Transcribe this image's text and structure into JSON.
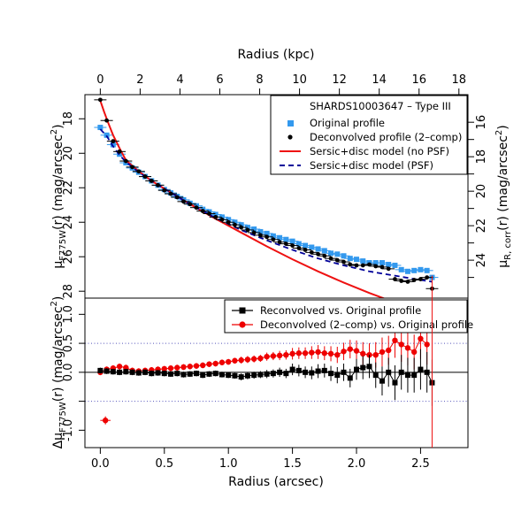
{
  "chart_data": [
    {
      "type": "scatter",
      "panel": "top",
      "x_bottom_range": [
        -0.12,
        2.87
      ],
      "top_axis": {
        "label": "Radius (kpc)",
        "ticks": [
          0,
          2,
          4,
          6,
          8,
          10,
          12,
          14,
          16,
          18
        ],
        "kpc_per_arcsec": 6.43
      },
      "ylabel_left_main": "μ",
      "ylabel_left_sub": "F775W",
      "ylabel_left_tail": "(r) (mag/arcsec",
      "ylabel_right_main": "μ",
      "ylabel_right_sub": "R, corr",
      "ylabel_right_tail": "(r) (mag/arcsec",
      "ylabel_sup": "2",
      "ylabel_close": ")",
      "ylim": [
        28.4,
        16.6
      ],
      "y_ticks": [
        18,
        20,
        22,
        24,
        26,
        28
      ],
      "y_right_ticks": [
        16,
        18,
        20,
        22,
        24
      ],
      "y_right_offset": -2.2,
      "cutoff_radius": 2.59,
      "legend_title": "SHARDS10003647  –  Type III",
      "legend": [
        "Original profile",
        "Deconvolved profile (2–comp)",
        "Sersic+disc model (no PSF)",
        "Sersic+disc model (PSF)"
      ],
      "colors": {
        "original": "#3399ee",
        "deconvolved": "#000000",
        "model_nopsf": "#ee1111",
        "model_psf": "#000099",
        "cutoff": "#ee1111"
      },
      "series": [
        {
          "name": "Original profile",
          "x": [
            0.0,
            0.05,
            0.1,
            0.15,
            0.2,
            0.25,
            0.3,
            0.35,
            0.4,
            0.45,
            0.5,
            0.55,
            0.6,
            0.65,
            0.7,
            0.75,
            0.8,
            0.85,
            0.9,
            0.95,
            1.0,
            1.05,
            1.1,
            1.15,
            1.2,
            1.25,
            1.3,
            1.35,
            1.4,
            1.45,
            1.5,
            1.55,
            1.6,
            1.65,
            1.7,
            1.75,
            1.8,
            1.85,
            1.9,
            1.95,
            2.0,
            2.05,
            2.1,
            2.15,
            2.2,
            2.25,
            2.3,
            2.35,
            2.4,
            2.45,
            2.5,
            2.55,
            2.59
          ],
          "y": [
            18.5,
            18.95,
            19.5,
            20.05,
            20.55,
            20.85,
            21.1,
            21.35,
            21.6,
            21.85,
            22.1,
            22.3,
            22.5,
            22.7,
            22.9,
            23.05,
            23.25,
            23.4,
            23.55,
            23.7,
            23.85,
            24.0,
            24.15,
            24.3,
            24.4,
            24.55,
            24.65,
            24.8,
            24.9,
            25.0,
            25.1,
            25.25,
            25.35,
            25.45,
            25.55,
            25.65,
            25.8,
            25.85,
            25.95,
            26.1,
            26.15,
            26.25,
            26.35,
            26.35,
            26.35,
            26.45,
            26.5,
            26.75,
            26.85,
            26.8,
            26.75,
            26.8,
            27.2
          ]
        },
        {
          "name": "Deconvolved profile (2–comp)",
          "x": [
            0.0,
            0.05,
            0.1,
            0.15,
            0.2,
            0.25,
            0.3,
            0.35,
            0.4,
            0.45,
            0.5,
            0.55,
            0.6,
            0.65,
            0.7,
            0.75,
            0.8,
            0.85,
            0.9,
            0.95,
            1.0,
            1.05,
            1.1,
            1.15,
            1.2,
            1.25,
            1.3,
            1.35,
            1.4,
            1.45,
            1.5,
            1.55,
            1.6,
            1.65,
            1.7,
            1.75,
            1.8,
            1.85,
            1.9,
            1.95,
            2.0,
            2.05,
            2.1,
            2.15,
            2.2,
            2.25,
            2.3,
            2.35,
            2.4,
            2.45,
            2.5,
            2.55,
            2.59
          ],
          "y": [
            16.9,
            18.1,
            19.3,
            19.9,
            20.45,
            20.8,
            21.05,
            21.35,
            21.6,
            21.85,
            22.15,
            22.35,
            22.55,
            22.8,
            22.95,
            23.15,
            23.35,
            23.5,
            23.7,
            23.85,
            24.0,
            24.15,
            24.3,
            24.45,
            24.6,
            24.75,
            24.85,
            25.0,
            25.15,
            25.25,
            25.35,
            25.5,
            25.6,
            25.75,
            25.85,
            25.95,
            26.1,
            26.2,
            26.3,
            26.45,
            26.5,
            26.5,
            26.45,
            26.55,
            26.6,
            26.7,
            27.3,
            27.4,
            27.45,
            27.35,
            27.3,
            27.2,
            27.85
          ]
        },
        {
          "name": "Sersic+disc model (no PSF)",
          "x": [
            0.0,
            0.03,
            0.06,
            0.1,
            0.15,
            0.2,
            0.3,
            0.4,
            0.5,
            0.7,
            0.9,
            1.1,
            1.3,
            1.5,
            1.7,
            1.9,
            2.1,
            2.28
          ],
          "y": [
            16.95,
            17.6,
            18.2,
            18.95,
            19.7,
            20.4,
            21.05,
            21.6,
            22.05,
            22.95,
            23.8,
            24.6,
            25.4,
            26.15,
            26.85,
            27.5,
            28.1,
            28.6
          ]
        },
        {
          "name": "Sersic+disc model (PSF)",
          "x": [
            0.0,
            0.05,
            0.1,
            0.15,
            0.2,
            0.3,
            0.4,
            0.5,
            0.7,
            0.9,
            1.1,
            1.3,
            1.5,
            1.7,
            1.9,
            2.1,
            2.3,
            2.5,
            2.59
          ],
          "y": [
            18.6,
            19.0,
            19.6,
            20.1,
            20.5,
            21.1,
            21.6,
            22.05,
            22.95,
            23.75,
            24.45,
            25.05,
            25.6,
            26.1,
            26.5,
            26.85,
            27.1,
            27.35,
            27.45
          ]
        }
      ]
    },
    {
      "type": "scatter",
      "panel": "bottom",
      "xlabel": "Radius (arcsec)",
      "x_ticks": [
        "0.0",
        "0.5",
        "1.0",
        "1.5",
        "2.0",
        "2.5"
      ],
      "x_tick_values": [
        0,
        0.5,
        1,
        1.5,
        2,
        2.5
      ],
      "xlim": [
        -0.12,
        2.87
      ],
      "ylabel_main": "Δμ",
      "ylabel_sub": "F775W",
      "ylabel_tail": "(r) (mag/arcsec",
      "ylabel_sup": "2",
      "ylabel_close": ")",
      "ylim": [
        -1.3,
        1.28
      ],
      "y_ticks": [
        "-1.0",
        "0.0",
        "0.5",
        "1.0"
      ],
      "y_tick_values": [
        -1,
        0,
        0.5,
        1
      ],
      "ref_lines": [
        0.5,
        -0.5
      ],
      "legend": [
        "Reconvolved vs. Original profile",
        "Deconvolved (2–comp) vs. Original profile"
      ],
      "colors": {
        "reconvolved": "#000000",
        "deconvolved": "#ee0000",
        "ref": "#5555bb"
      },
      "error_marker": {
        "x": 0.04,
        "y": -0.83,
        "xerr": 0.04,
        "yerr": 0.07
      },
      "series": [
        {
          "name": "Reconvolved vs. Original profile",
          "x": [
            0.0,
            0.05,
            0.1,
            0.15,
            0.2,
            0.25,
            0.3,
            0.35,
            0.4,
            0.45,
            0.5,
            0.55,
            0.6,
            0.65,
            0.7,
            0.75,
            0.8,
            0.85,
            0.9,
            0.95,
            1.0,
            1.05,
            1.1,
            1.15,
            1.2,
            1.25,
            1.3,
            1.35,
            1.4,
            1.45,
            1.5,
            1.55,
            1.6,
            1.65,
            1.7,
            1.75,
            1.8,
            1.85,
            1.9,
            1.95,
            2.0,
            2.05,
            2.1,
            2.15,
            2.2,
            2.25,
            2.3,
            2.35,
            2.4,
            2.45,
            2.5,
            2.55,
            2.59
          ],
          "y": [
            0.03,
            0.02,
            0.01,
            0.0,
            0.01,
            0.0,
            -0.01,
            0.0,
            -0.02,
            -0.01,
            -0.02,
            -0.03,
            -0.02,
            -0.04,
            -0.03,
            -0.02,
            -0.05,
            -0.03,
            -0.02,
            -0.04,
            -0.05,
            -0.06,
            -0.08,
            -0.06,
            -0.05,
            -0.04,
            -0.03,
            -0.02,
            0.0,
            -0.02,
            0.05,
            0.03,
            0.0,
            -0.01,
            0.02,
            0.03,
            -0.02,
            -0.05,
            0.0,
            -0.1,
            0.05,
            0.08,
            0.1,
            -0.05,
            -0.15,
            0.0,
            -0.18,
            0.0,
            -0.05,
            -0.05,
            0.05,
            0.0,
            -0.18
          ],
          "yerr": [
            0.05,
            0.05,
            0.05,
            0.05,
            0.05,
            0.05,
            0.05,
            0.05,
            0.05,
            0.05,
            0.05,
            0.05,
            0.05,
            0.05,
            0.05,
            0.05,
            0.05,
            0.05,
            0.05,
            0.05,
            0.05,
            0.05,
            0.06,
            0.06,
            0.06,
            0.06,
            0.07,
            0.07,
            0.08,
            0.08,
            0.1,
            0.1,
            0.1,
            0.11,
            0.12,
            0.12,
            0.13,
            0.14,
            0.15,
            0.16,
            0.18,
            0.2,
            0.2,
            0.22,
            0.25,
            0.25,
            0.3,
            0.3,
            0.3,
            0.3,
            0.35,
            0.35,
            0.4
          ]
        },
        {
          "name": "Deconvolved (2–comp) vs. Original profile",
          "x": [
            0.0,
            0.05,
            0.1,
            0.15,
            0.2,
            0.25,
            0.3,
            0.35,
            0.4,
            0.45,
            0.5,
            0.55,
            0.6,
            0.65,
            0.7,
            0.75,
            0.8,
            0.85,
            0.9,
            0.95,
            1.0,
            1.05,
            1.1,
            1.15,
            1.2,
            1.25,
            1.3,
            1.35,
            1.4,
            1.45,
            1.5,
            1.55,
            1.6,
            1.65,
            1.7,
            1.75,
            1.8,
            1.85,
            1.9,
            1.95,
            2.0,
            2.05,
            2.1,
            2.15,
            2.2,
            2.25,
            2.3,
            2.35,
            2.4,
            2.45,
            2.5,
            2.55
          ],
          "y": [
            0.0,
            0.05,
            0.07,
            0.1,
            0.08,
            0.03,
            0.02,
            0.03,
            0.04,
            0.05,
            0.06,
            0.07,
            0.08,
            0.09,
            0.1,
            0.11,
            0.12,
            0.14,
            0.15,
            0.17,
            0.18,
            0.2,
            0.21,
            0.22,
            0.23,
            0.24,
            0.27,
            0.28,
            0.29,
            0.3,
            0.32,
            0.33,
            0.33,
            0.34,
            0.35,
            0.33,
            0.32,
            0.3,
            0.36,
            0.4,
            0.37,
            0.32,
            0.3,
            0.3,
            0.35,
            0.38,
            0.55,
            0.48,
            0.42,
            0.35,
            0.58,
            0.48
          ],
          "yerr": [
            0.05,
            0.05,
            0.05,
            0.05,
            0.05,
            0.05,
            0.05,
            0.05,
            0.05,
            0.05,
            0.05,
            0.05,
            0.05,
            0.05,
            0.05,
            0.05,
            0.05,
            0.05,
            0.05,
            0.05,
            0.05,
            0.05,
            0.06,
            0.06,
            0.06,
            0.06,
            0.07,
            0.07,
            0.08,
            0.08,
            0.1,
            0.1,
            0.1,
            0.11,
            0.12,
            0.12,
            0.13,
            0.14,
            0.15,
            0.16,
            0.18,
            0.2,
            0.2,
            0.22,
            0.25,
            0.25,
            0.3,
            0.3,
            0.3,
            0.3,
            0.35,
            0.35
          ]
        }
      ]
    }
  ]
}
